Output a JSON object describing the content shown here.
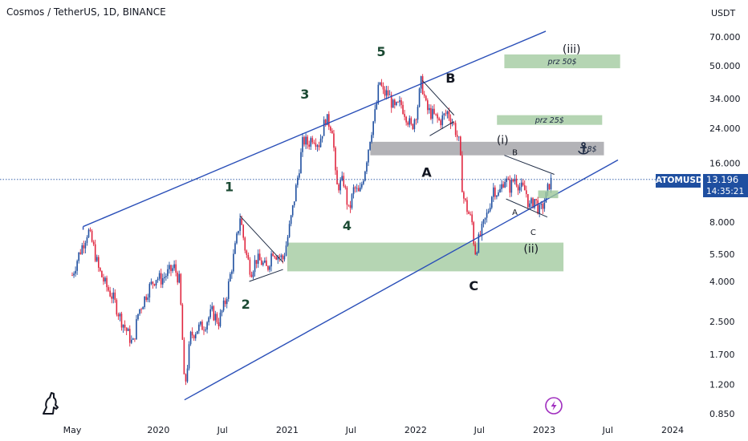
{
  "header": {
    "title": "Cosmos / TetherUS, 1D, BINANCE"
  },
  "badge": {
    "symbol": "ATOMUSDT",
    "price": "13.196",
    "countdown": "14:35:21"
  },
  "icons": {
    "logo": "tradingview-dino-logo",
    "bolt": "lightning-bolt-icon",
    "anchor": "anchor-icon"
  },
  "colors": {
    "price_up": "#1f4fa0",
    "price_down": "#e0263f",
    "channel": "#2a4fb8",
    "zone_green": "#9cc79a",
    "zone_gray": "#a6a6aa",
    "badge": "#1f4fa0"
  },
  "chart_data": {
    "type": "candlestick",
    "symbol": "ATOMUSDT",
    "exchange": "BINANCE",
    "timeframe": "1D",
    "y_scale": "log",
    "y_unit": "USDT",
    "y_ticks": [
      "70.000",
      "50.000",
      "34.000",
      "24.000",
      "16.000",
      "8.000",
      "5.500",
      "4.000",
      "2.500",
      "1.700",
      "1.200",
      "0.850"
    ],
    "x_ticks": [
      "May",
      "2020",
      "Jul",
      "2021",
      "Jul",
      "2022",
      "Jul",
      "2023",
      "Jul",
      "2024"
    ],
    "last_price": 13.196,
    "price_path": [
      [
        "2019-05-01",
        4.3
      ],
      [
        "2019-05-20",
        5.5
      ],
      [
        "2019-06-05",
        6.5
      ],
      [
        "2019-06-15",
        7.3
      ],
      [
        "2019-06-30",
        6.0
      ],
      [
        "2019-07-15",
        4.6
      ],
      [
        "2019-08-05",
        3.8
      ],
      [
        "2019-08-25",
        3.3
      ],
      [
        "2019-09-15",
        2.6
      ],
      [
        "2019-10-05",
        2.2
      ],
      [
        "2019-10-20",
        1.9
      ],
      [
        "2019-11-05",
        2.8
      ],
      [
        "2019-11-20",
        3.2
      ],
      [
        "2019-12-05",
        3.7
      ],
      [
        "2019-12-25",
        4.2
      ],
      [
        "2020-01-10",
        4.1
      ],
      [
        "2020-02-01",
        4.5
      ],
      [
        "2020-02-15",
        4.7
      ],
      [
        "2020-03-01",
        4.0
      ],
      [
        "2020-03-12",
        1.6
      ],
      [
        "2020-03-15",
        1.1
      ],
      [
        "2020-04-01",
        2.1
      ],
      [
        "2020-04-20",
        2.3
      ],
      [
        "2020-05-10",
        2.4
      ],
      [
        "2020-06-01",
        2.8
      ],
      [
        "2020-06-20",
        2.5
      ],
      [
        "2020-07-10",
        3.2
      ],
      [
        "2020-07-25",
        4.5
      ],
      [
        "2020-08-10",
        6.5
      ],
      [
        "2020-08-20",
        8.6
      ],
      [
        "2020-09-05",
        5.6
      ],
      [
        "2020-09-20",
        4.5
      ],
      [
        "2020-10-05",
        5.2
      ],
      [
        "2020-10-20",
        5.0
      ],
      [
        "2020-11-05",
        4.6
      ],
      [
        "2020-11-20",
        5.8
      ],
      [
        "2020-12-01",
        5.5
      ],
      [
        "2020-12-20",
        5.2
      ],
      [
        "2021-01-01",
        6.5
      ],
      [
        "2021-01-15",
        9.0
      ],
      [
        "2021-02-01",
        14.0
      ],
      [
        "2021-02-15",
        21.0
      ],
      [
        "2021-03-01",
        20.0
      ],
      [
        "2021-03-15",
        22.0
      ],
      [
        "2021-04-01",
        20.0
      ],
      [
        "2021-04-20",
        27.0
      ],
      [
        "2021-05-10",
        24.0
      ],
      [
        "2021-05-20",
        12.0
      ],
      [
        "2021-06-10",
        13.0
      ],
      [
        "2021-06-25",
        9.0
      ],
      [
        "2021-07-10",
        12.0
      ],
      [
        "2021-07-25",
        11.0
      ],
      [
        "2021-08-10",
        15.0
      ],
      [
        "2021-08-25",
        22.0
      ],
      [
        "2021-09-10",
        30.0
      ],
      [
        "2021-09-20",
        42.0
      ],
      [
        "2021-10-01",
        36.0
      ],
      [
        "2021-10-15",
        36.0
      ],
      [
        "2021-11-01",
        30.0
      ],
      [
        "2021-11-20",
        32.0
      ],
      [
        "2021-12-05",
        28.0
      ],
      [
        "2021-12-20",
        24.0
      ],
      [
        "2022-01-05",
        30.0
      ],
      [
        "2022-01-17",
        42.0
      ],
      [
        "2022-02-01",
        30.0
      ],
      [
        "2022-02-20",
        28.0
      ],
      [
        "2022-03-10",
        26.0
      ],
      [
        "2022-04-01",
        29.0
      ],
      [
        "2022-04-20",
        25.0
      ],
      [
        "2022-05-05",
        20.0
      ],
      [
        "2022-05-15",
        11.0
      ],
      [
        "2022-05-30",
        9.0
      ],
      [
        "2022-06-10",
        8.0
      ],
      [
        "2022-06-18",
        5.6
      ],
      [
        "2022-07-05",
        7.0
      ],
      [
        "2022-07-25",
        9.0
      ],
      [
        "2022-08-10",
        12.0
      ],
      [
        "2022-08-25",
        11.0
      ],
      [
        "2022-09-10",
        13.5
      ],
      [
        "2022-09-25",
        12.0
      ],
      [
        "2022-10-10",
        13.5
      ],
      [
        "2022-10-25",
        12.0
      ],
      [
        "2022-11-10",
        11.5
      ],
      [
        "2022-11-20",
        9.5
      ],
      [
        "2022-12-05",
        10.5
      ],
      [
        "2022-12-20",
        9.0
      ],
      [
        "2023-01-05",
        10.5
      ],
      [
        "2023-01-15",
        12.5
      ],
      [
        "2023-01-25",
        13.196
      ]
    ],
    "annotations": {
      "wave_labels": [
        {
          "text": "1",
          "date": "2020-07-20",
          "price": 11.5
        },
        {
          "text": "2",
          "date": "2020-09-05",
          "price": 2.9
        },
        {
          "text": "3",
          "date": "2021-02-20",
          "price": 34
        },
        {
          "text": "4",
          "date": "2021-06-20",
          "price": 7.3
        },
        {
          "text": "5",
          "date": "2021-09-25",
          "price": 56
        },
        {
          "text": "A",
          "date": "2022-02-01",
          "price": 13.6
        },
        {
          "text": "B",
          "date": "2022-04-10",
          "price": 41
        },
        {
          "text": "C",
          "date": "2022-06-15",
          "price": 3.6
        },
        {
          "text": "(i)",
          "date": "2022-09-05",
          "price": 20
        },
        {
          "text": "(ii)",
          "date": "2022-11-25",
          "price": 5.6
        },
        {
          "text": "(iii)",
          "date": "2023-03-20",
          "price": 58
        },
        {
          "text": "B",
          "date": "2022-10-10",
          "price": 17.5
        },
        {
          "text": "A",
          "date": "2022-10-10",
          "price": 8.7
        },
        {
          "text": "C",
          "date": "2022-12-01",
          "price": 6.9
        }
      ],
      "zones": [
        {
          "label": "",
          "kind": "support",
          "from": "2021-01-01",
          "to": "2023-02-25",
          "low": 4.5,
          "high": 6.3
        },
        {
          "label": "18$",
          "kind": "resistance",
          "from": "2021-08-25",
          "to": "2023-06-20",
          "low": 17.5,
          "high": 20.5
        },
        {
          "label": "prz  25$",
          "kind": "target",
          "from": "2022-08-20",
          "to": "2023-06-15",
          "low": 25,
          "high": 28
        },
        {
          "label": "prz  50$",
          "kind": "target",
          "from": "2022-09-10",
          "to": "2023-08-05",
          "low": 48.5,
          "high": 57
        }
      ],
      "channel": {
        "upper": [
          [
            "2019-06-01",
            7.6
          ],
          [
            "2022-01-25",
            41
          ]
        ],
        "lower": [
          [
            "2020-03-15",
            1.0
          ],
          [
            "2023-05-01",
            13.5
          ]
        ]
      }
    }
  }
}
